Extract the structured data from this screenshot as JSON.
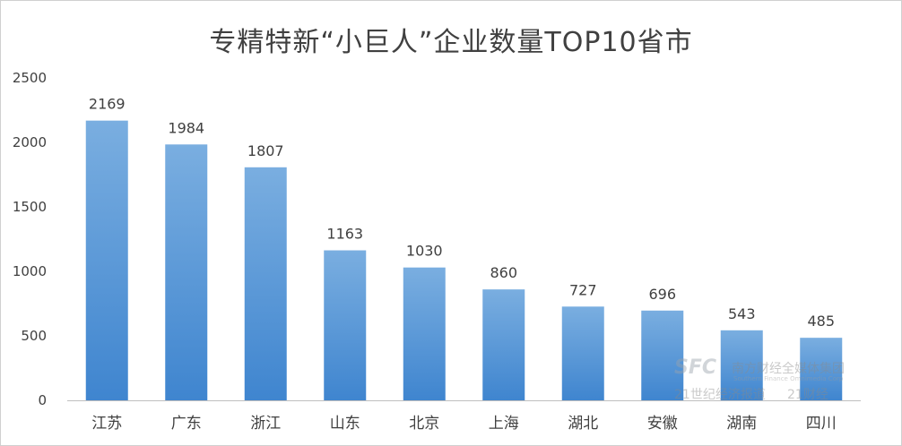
{
  "chart_data": {
    "type": "bar",
    "title": "专精特新“小巨人”企业数量TOP10省市",
    "categories": [
      "江苏",
      "广东",
      "浙江",
      "山东",
      "北京",
      "上海",
      "湖北",
      "安徽",
      "湖南",
      "四川"
    ],
    "values": [
      2169,
      1984,
      1807,
      1163,
      1030,
      860,
      727,
      696,
      543,
      485
    ],
    "ylim": [
      0,
      2500
    ],
    "yticks": [
      0,
      500,
      1000,
      1500,
      2000,
      2500
    ],
    "ytick_labels": [
      "0",
      "500",
      "1000",
      "1500",
      "2000",
      "2500"
    ],
    "xlabel": "",
    "ylabel": "",
    "grid": false,
    "legend": "none",
    "data_labels": true,
    "colors": {
      "bar_top": "#7aaee0",
      "bar_bottom": "#3f85cf",
      "axis": "#bfbfbf",
      "text": "#404040"
    }
  },
  "watermark": {
    "logo": "SFC",
    "group": "南方财经全媒体集团",
    "group_en": "Southern Finance Omnimedia Corp",
    "paper": "21世纪经济报道",
    "brand": "21财经"
  }
}
